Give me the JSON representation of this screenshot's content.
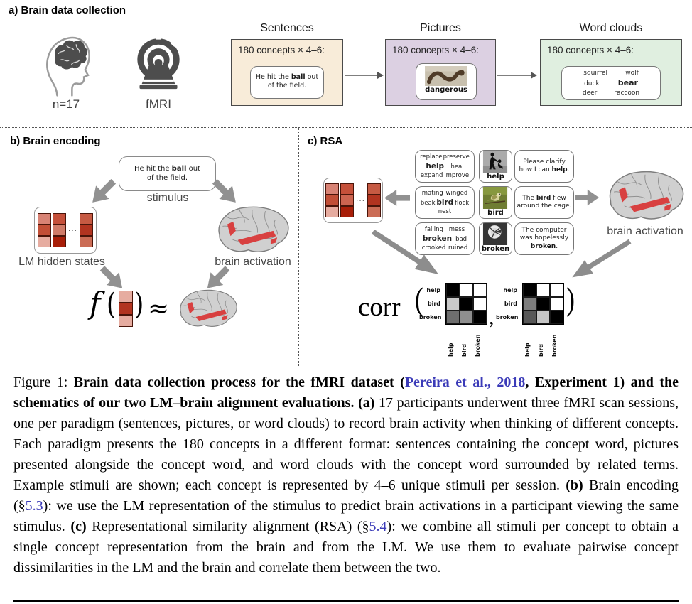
{
  "colors": {
    "sentences_bg": "#f8ecd9",
    "pictures_bg": "#dcd0e2",
    "wordclouds_bg": "#e0efe0",
    "link": "#3b3bb8",
    "activation_red": "#d84040",
    "arrow_gray": "#919191",
    "icon_gray": "#4d4d4d",
    "cell_border": "#4a150a"
  },
  "icons": {
    "participants": "head-with-brain-icon",
    "scanner": "fmri-scanner-icon",
    "brain": "brain-activation-icon",
    "snake": "snake-photo",
    "help": "helping-person-photo",
    "bird": "bird-photo",
    "broken": "broken-plate-photo",
    "arrow": "block-arrow-icon"
  },
  "panel_a": {
    "label": "a) Brain data collection",
    "participants_label": "n=17",
    "scanner_label": "fMRI",
    "paradigms": [
      {
        "title": "Sentences",
        "count": "180 concepts × 4–6:",
        "stimulus": [
          {
            "t": "He hit the "
          },
          {
            "t": "ball",
            "b": true
          },
          {
            "t": " out"
          },
          {
            "br": true
          },
          {
            "t": "of the field."
          }
        ]
      },
      {
        "title": "Pictures",
        "count": "180 concepts × 4–6:",
        "picture_label": "dangerous"
      },
      {
        "title": "Word clouds",
        "count": "180 concepts × 4–6:",
        "cloud_lines": [
          [
            {
              "t": "squirrel"
            },
            {
              "t": "wolf"
            }
          ],
          [
            {
              "t": "duck"
            },
            {
              "t": "bear",
              "b": true
            }
          ],
          [
            {
              "t": "deer"
            },
            {
              "t": "raccoon"
            }
          ]
        ]
      }
    ]
  },
  "panel_b": {
    "label": "b) Brain encoding",
    "stimulus": [
      {
        "t": "He hit the "
      },
      {
        "t": "ball",
        "b": true
      },
      {
        "t": " out"
      },
      {
        "br": true
      },
      {
        "t": "of the field."
      }
    ],
    "stimulus_caption": "stimulus",
    "lm_label": "LM hidden states",
    "brain_label": "brain activation",
    "lm_matrix": {
      "ellipsis": "···",
      "cols": [
        [
          "#d88375",
          "#c24f37",
          "#e6aca0"
        ],
        [
          "#c5503a",
          "#d07b68",
          "#a81e08"
        ],
        [
          "#c65a43",
          "#b23420",
          "#cb6c55"
        ]
      ]
    },
    "formula": {
      "f": "f",
      "open": "(",
      "close": ")",
      "approx": "≈",
      "vector": [
        "#e6aca0",
        "#b23420",
        "#e6aca0"
      ]
    }
  },
  "panel_c": {
    "label": "c) RSA",
    "brain_label": "brain activation",
    "lm_matrix": {
      "ellipsis": "···",
      "cols": [
        [
          "#d88375",
          "#c24f37",
          "#e6aca0"
        ],
        [
          "#c5503a",
          "#cc6450",
          "#a81e08"
        ],
        [
          "#c65a43",
          "#b23420",
          "#cb6c55"
        ]
      ]
    },
    "rows": [
      {
        "cloud_lines": [
          [
            {
              "t": "replace"
            },
            {
              "t": "preserve"
            }
          ],
          [
            {
              "t": "help",
              "b": true
            },
            {
              "t": "heal"
            }
          ],
          [
            {
              "t": "expand"
            },
            {
              "t": "improve"
            }
          ]
        ],
        "picture_label": "help",
        "sentence": [
          {
            "t": "Please clarify"
          },
          {
            "br": true
          },
          {
            "t": "how I can "
          },
          {
            "t": "help",
            "b": true
          },
          {
            "t": "."
          }
        ]
      },
      {
        "cloud_lines": [
          [
            {
              "t": "mating"
            },
            {
              "t": "winged"
            }
          ],
          [
            {
              "t": "beak"
            },
            {
              "t": "bird",
              "b": true
            },
            {
              "t": "flock"
            }
          ],
          [
            {
              "t": "nest"
            }
          ]
        ],
        "picture_label": "bird",
        "sentence": [
          {
            "t": "The "
          },
          {
            "t": "bird",
            "b": true
          },
          {
            "t": " flew"
          },
          {
            "br": true
          },
          {
            "t": "around the cage."
          }
        ]
      },
      {
        "cloud_lines": [
          [
            {
              "t": "failing"
            },
            {
              "t": "mess"
            }
          ],
          [
            {
              "t": "broken",
              "b": true
            },
            {
              "t": "bad"
            }
          ],
          [
            {
              "t": "crooked"
            },
            {
              "t": "ruined"
            }
          ]
        ],
        "picture_label": "broken",
        "sentence": [
          {
            "t": "The computer"
          },
          {
            "br": true
          },
          {
            "t": "was hopelessly"
          },
          {
            "br": true
          },
          {
            "t": "broken",
            "b": true
          },
          {
            "t": "."
          }
        ]
      }
    ],
    "corr": {
      "label": "corr",
      "open": "(",
      "close": ")",
      "comma": ",",
      "row_labels": [
        "help",
        "bird",
        "broken"
      ],
      "col_labels": [
        "help",
        "bird",
        "broken"
      ],
      "matrix_lm": [
        [
          "#000000",
          "#ffffff",
          "#ffffff"
        ],
        [
          "#c9c9c9",
          "#000000",
          "#ffffff"
        ],
        [
          "#6e6e6e",
          "#8f8f8f",
          "#000000"
        ]
      ],
      "matrix_brain": [
        [
          "#000000",
          "#ffffff",
          "#ffffff"
        ],
        [
          "#7d7d7d",
          "#000000",
          "#ffffff"
        ],
        [
          "#585858",
          "#c6c6c6",
          "#000000"
        ]
      ]
    }
  },
  "caption": {
    "segments": [
      {
        "t": "Figure 1: "
      },
      {
        "t": "Brain data collection process for the fMRI dataset (",
        "b": true
      },
      {
        "t": "Pereira et al., 2018",
        "b": true,
        "c": "link"
      },
      {
        "t": ", Experiment 1) and the schematics of our two LM–brain alignment evaluations. ",
        "b": true
      },
      {
        "t": "(a)",
        "b": true
      },
      {
        "t": " 17 participants underwent three fMRI scan sessions, one per paradigm (sentences, pictures, or word clouds) to record brain activity when thinking of different concepts. Each paradigm presents the 180 concepts in a different format: sentences containing the concept word, pictures presented alongside the concept word, and word clouds with the concept word surrounded by related terms. Example stimuli are shown; each concept is represented by 4–6 unique stimuli per session. "
      },
      {
        "t": "(b)",
        "b": true
      },
      {
        "t": " Brain encoding (§"
      },
      {
        "t": "5.3",
        "c": "link"
      },
      {
        "t": "): we use the LM representation of the stimulus to predict brain activations in a participant viewing the same stimulus. "
      },
      {
        "t": "(c)",
        "b": true
      },
      {
        "t": " Representational similarity alignment (RSA) (§"
      },
      {
        "t": "5.4",
        "c": "link"
      },
      {
        "t": "): we combine all stimuli per concept to obtain a single concept representation from the brain and from the LM. We use them to evaluate pairwise concept dissimilarities in the LM and the brain and correlate them between the two."
      }
    ]
  }
}
